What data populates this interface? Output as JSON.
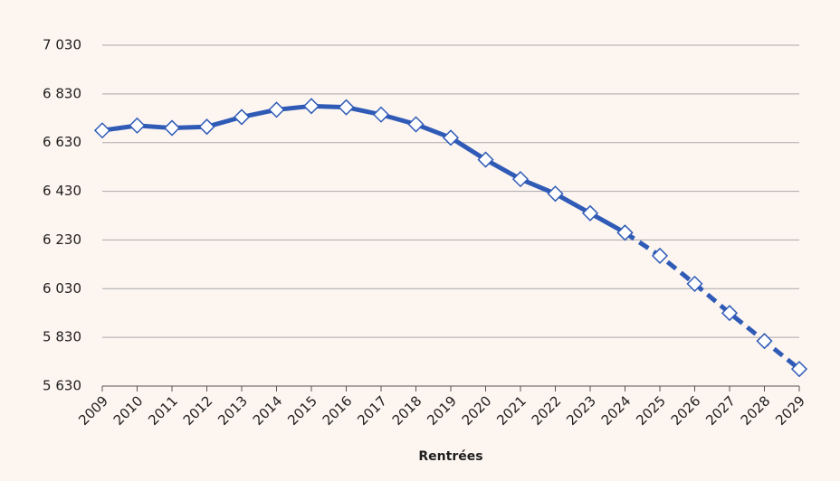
{
  "chart_data": {
    "type": "line",
    "x_label": "Rentrées",
    "categories": [
      "2009",
      "2010",
      "2011",
      "2012",
      "2013",
      "2014",
      "2015",
      "2016",
      "2017",
      "2018",
      "2019",
      "2020",
      "2021",
      "2022",
      "2023",
      "2024",
      "2025",
      "2026",
      "2027",
      "2028",
      "2029"
    ],
    "series": [
      {
        "color": "#2f5bb7",
        "dashed": false,
        "values": [
          6680,
          6700,
          6690,
          6695,
          6735,
          6765,
          6780,
          6775,
          6745,
          6705,
          6650,
          6560,
          6480,
          6420,
          6340,
          6260,
          null,
          null,
          null,
          null,
          null
        ]
      },
      {
        "color": "#2f5bb7",
        "dashed": true,
        "values": [
          null,
          null,
          null,
          null,
          null,
          null,
          null,
          null,
          null,
          null,
          null,
          null,
          null,
          null,
          null,
          6260,
          6165,
          6050,
          5930,
          5815,
          5700
        ]
      }
    ],
    "ylim": [
      5630,
      7030
    ],
    "yticks": [
      {
        "value": 5630,
        "label": "5 630"
      },
      {
        "value": 5830,
        "label": "5 830"
      },
      {
        "value": 6030,
        "label": "6 030"
      },
      {
        "value": 6230,
        "label": "6 230"
      },
      {
        "value": 6430,
        "label": "6 430"
      },
      {
        "value": 6630,
        "label": "6 630"
      },
      {
        "value": 6830,
        "label": "6 830"
      },
      {
        "value": 7030,
        "label": "7 030"
      }
    ],
    "grid": true
  }
}
